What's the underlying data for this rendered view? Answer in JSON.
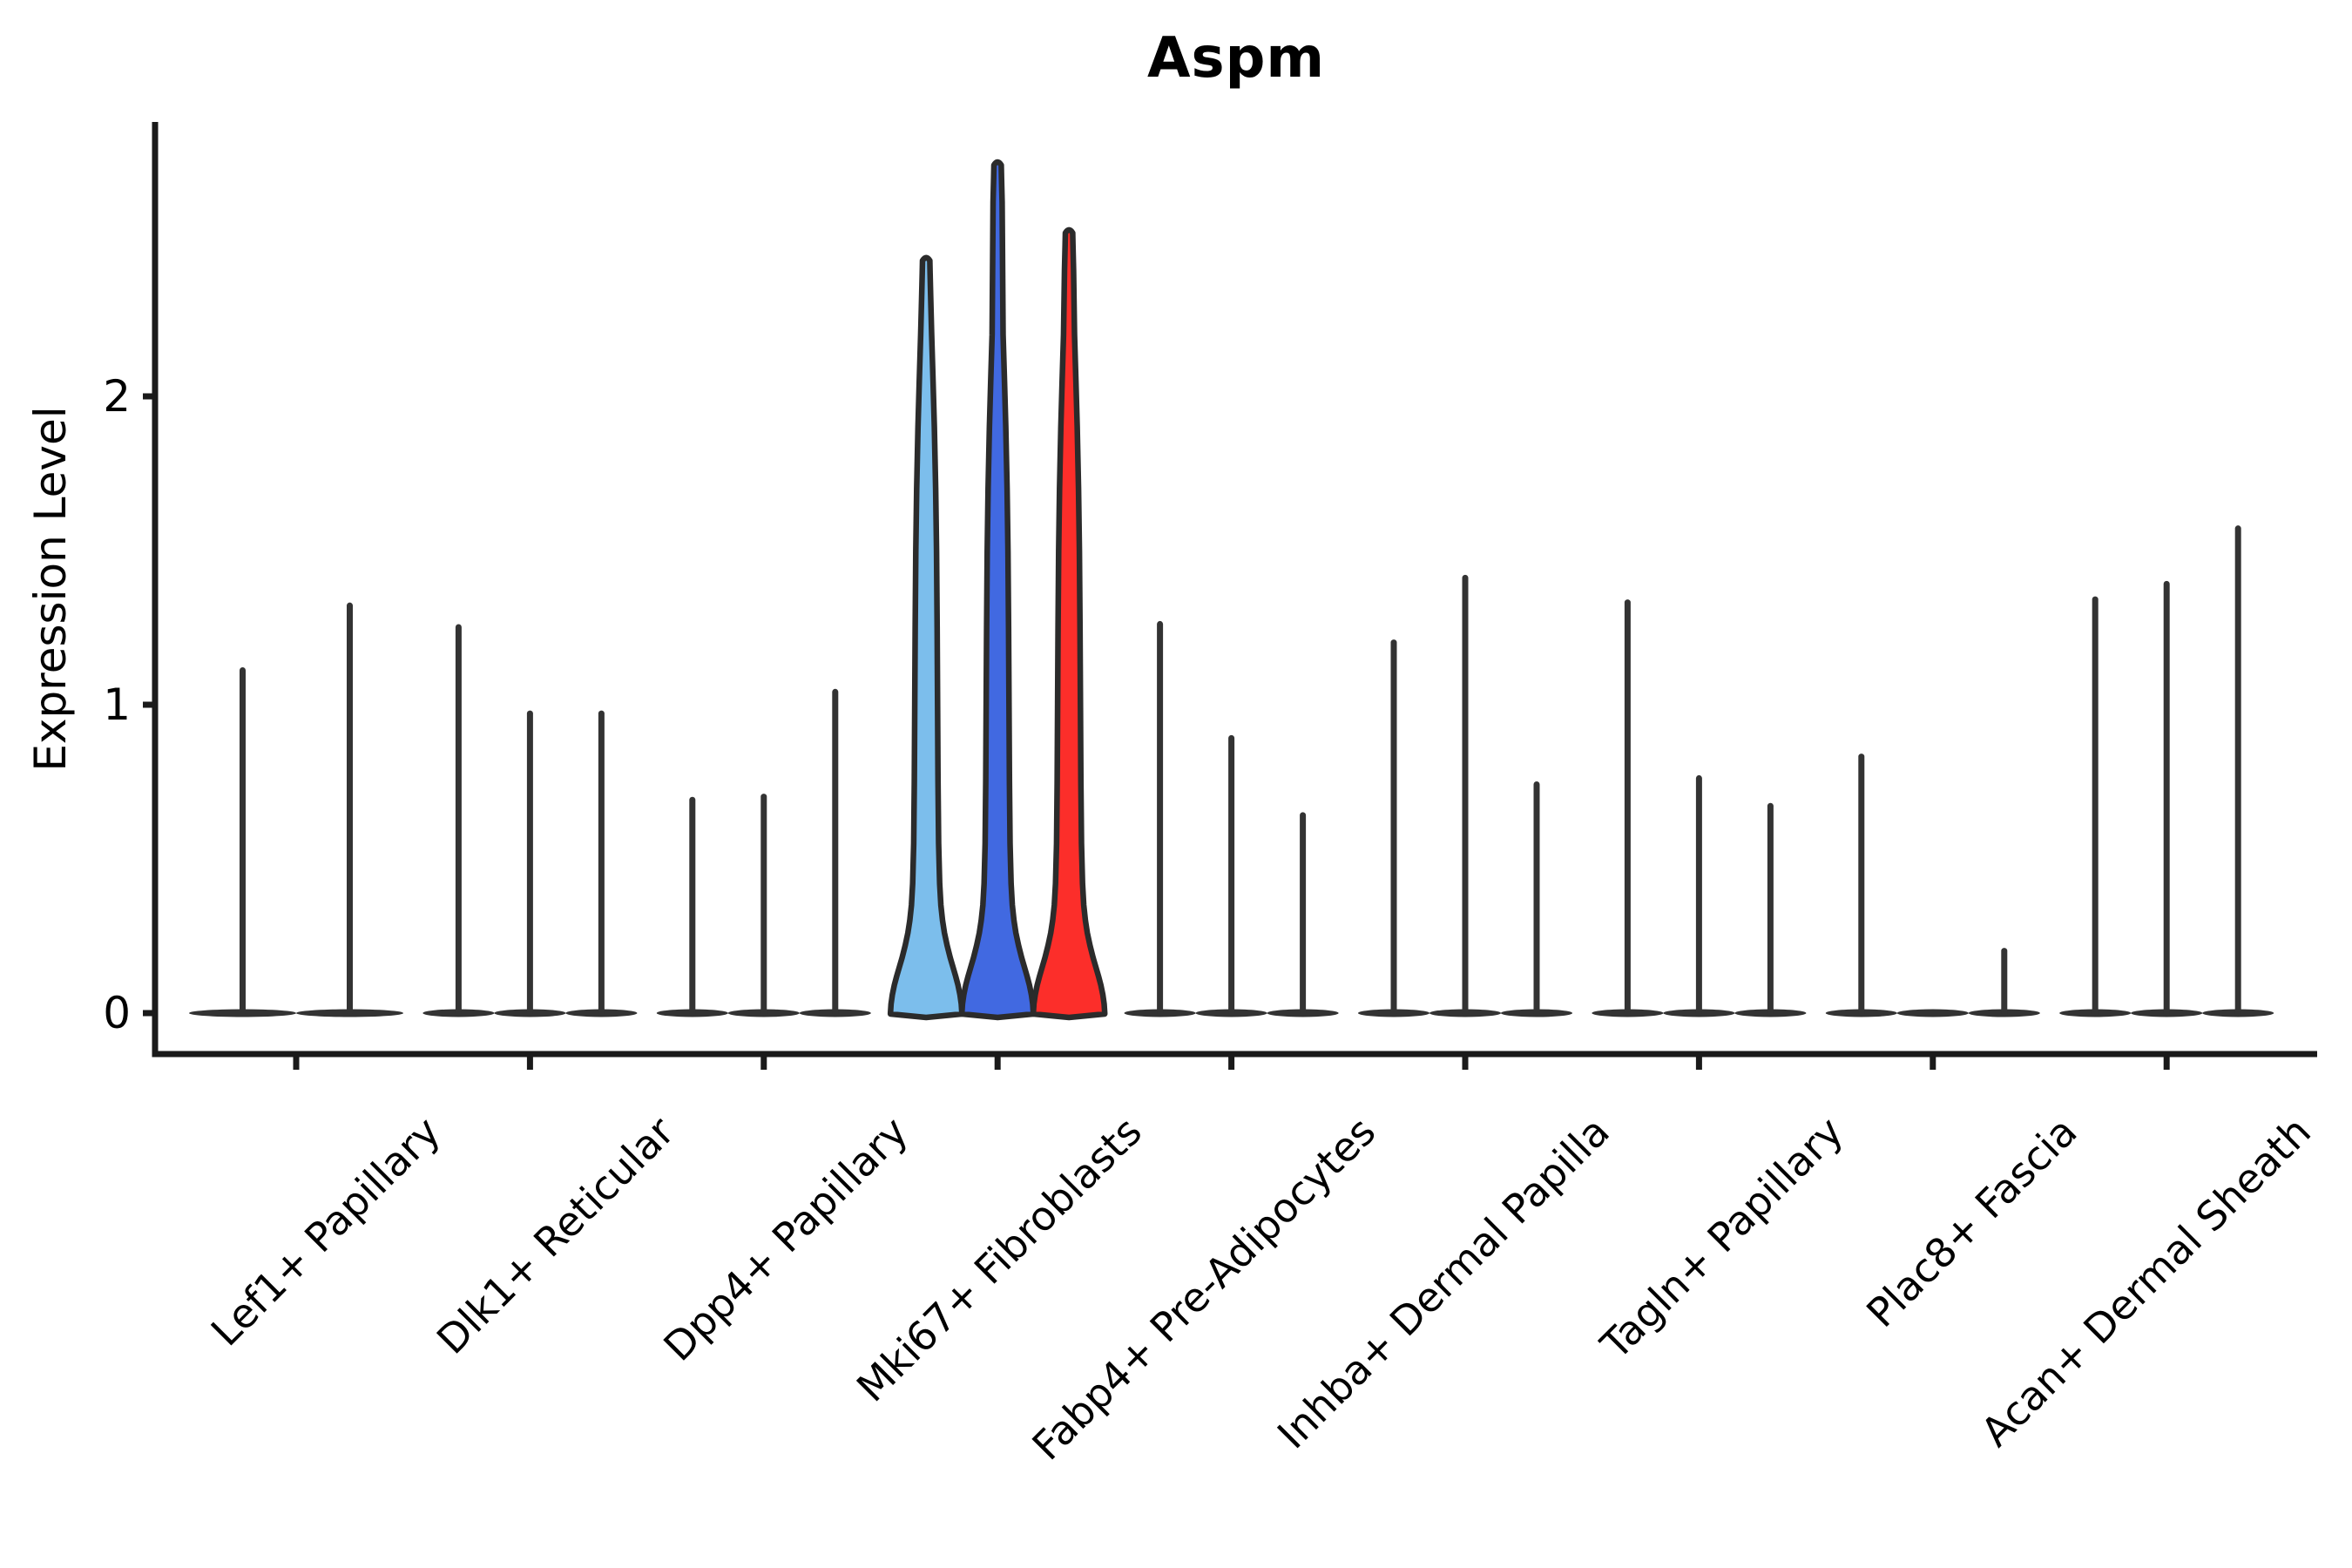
{
  "chart_data": {
    "type": "violin",
    "title": "Aspm",
    "ylabel": "Expression Level",
    "xlabel": "",
    "yticks": [
      0,
      1,
      2
    ],
    "ylim": [
      -0.07,
      2.9
    ],
    "x_tick_rotation": 45,
    "grid": false,
    "legend": "none",
    "spike_color": "#333333",
    "outline_color": "#2b2b2b",
    "axis_color": "#1a1a1a",
    "categories": [
      "Lef1+ Papillary",
      "Dlk1+ Reticular",
      "Dpp4+ Papillary",
      "Mki67+ Fibroblasts",
      "Fabp4+ Pre-Adipocytes",
      "Inhba+ Dermal Papilla",
      "Tagln+ Papillary",
      "Plac8+ Fascia",
      "Acan+ Dermal Sheath"
    ],
    "groups": [
      {
        "category": "Lef1+ Papillary",
        "violins": [
          {
            "max": 1.12
          },
          {
            "max": 1.33
          }
        ]
      },
      {
        "category": "Dlk1+ Reticular",
        "violins": [
          {
            "max": 1.26
          },
          {
            "max": 0.98
          },
          {
            "max": 0.98
          }
        ]
      },
      {
        "category": "Dpp4+ Papillary",
        "violins": [
          {
            "max": 0.7
          },
          {
            "max": 0.71
          },
          {
            "max": 1.05
          }
        ]
      },
      {
        "category": "Mki67+ Fibroblasts",
        "violins": [
          {
            "max": 2.44,
            "fill": "#7CBEEC"
          },
          {
            "max": 2.75,
            "fill": "#4169E1"
          },
          {
            "max": 2.53,
            "fill": "#FC2E2A"
          }
        ]
      },
      {
        "category": "Fabp4+ Pre-Adipocytes",
        "violins": [
          {
            "max": 1.27
          },
          {
            "max": 0.9
          },
          {
            "max": 0.65
          }
        ]
      },
      {
        "category": "Inhba+ Dermal Papilla",
        "violins": [
          {
            "max": 1.21
          },
          {
            "max": 1.42
          },
          {
            "max": 0.75
          }
        ]
      },
      {
        "category": "Tagln+ Papillary",
        "violins": [
          {
            "max": 1.34
          },
          {
            "max": 0.77
          },
          {
            "max": 0.68
          }
        ]
      },
      {
        "category": "Plac8+ Fascia",
        "violins": [
          {
            "max": 0.84
          },
          {
            "max": 0.0
          },
          {
            "max": 0.21
          }
        ]
      },
      {
        "category": "Acan+ Dermal Sheath",
        "violins": [
          {
            "max": 1.35
          },
          {
            "max": 1.4
          },
          {
            "max": 1.58
          }
        ]
      }
    ]
  }
}
